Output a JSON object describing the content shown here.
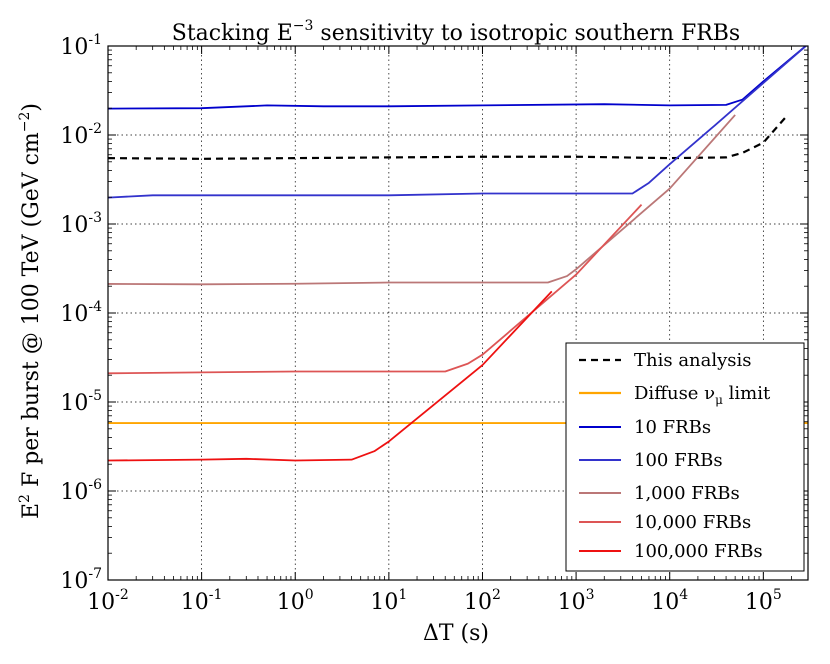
{
  "chart_data": {
    "type": "line",
    "title_main": "Stacking E",
    "title_exp": "−3",
    "title_rest": " sensitivity to isotropic southern FRBs",
    "xlabel": "ΔT (s)",
    "ylabel_prefix": "E",
    "ylabel_exp": "2",
    "ylabel_mid": " F per burst @ 100 TeV (GeV cm",
    "ylabel_exp2": "−2",
    "ylabel_suffix": ")",
    "x_scale": "log",
    "y_scale": "log",
    "xlim": [
      0.01,
      300000
    ],
    "ylim": [
      1e-07,
      0.1
    ],
    "grid": true,
    "legend_position": "lower-right",
    "x_ticks": [
      {
        "value": 0.01,
        "base": "10",
        "exp": "-2"
      },
      {
        "value": 0.1,
        "base": "10",
        "exp": "-1"
      },
      {
        "value": 1,
        "base": "10",
        "exp": "0"
      },
      {
        "value": 10,
        "base": "10",
        "exp": "1"
      },
      {
        "value": 100,
        "base": "10",
        "exp": "2"
      },
      {
        "value": 1000,
        "base": "10",
        "exp": "3"
      },
      {
        "value": 10000,
        "base": "10",
        "exp": "4"
      },
      {
        "value": 100000,
        "base": "10",
        "exp": "5"
      }
    ],
    "y_ticks": [
      {
        "value": 1e-07,
        "base": "10",
        "exp": "-7"
      },
      {
        "value": 1e-06,
        "base": "10",
        "exp": "-6"
      },
      {
        "value": 1e-05,
        "base": "10",
        "exp": "-5"
      },
      {
        "value": 0.0001,
        "base": "10",
        "exp": "-4"
      },
      {
        "value": 0.001,
        "base": "10",
        "exp": "-3"
      },
      {
        "value": 0.01,
        "base": "10",
        "exp": "-2"
      },
      {
        "value": 0.1,
        "base": "10",
        "exp": "-1"
      }
    ],
    "series": [
      {
        "name": "This analysis",
        "legend_label": "This analysis",
        "color": "#000000",
        "dashed": true,
        "points": [
          [
            0.01,
            0.0055
          ],
          [
            0.1,
            0.0054
          ],
          [
            1,
            0.0055
          ],
          [
            10,
            0.0056
          ],
          [
            100,
            0.0057
          ],
          [
            1000,
            0.0057
          ],
          [
            10000,
            0.0055
          ],
          [
            40000,
            0.0056
          ],
          [
            60000,
            0.0063
          ],
          [
            100000,
            0.0082
          ],
          [
            170000,
            0.0155
          ]
        ]
      },
      {
        "name": "Diffuse limit",
        "legend_label": "Diffuse ν",
        "legend_sub": "μ",
        "legend_suffix": " limit",
        "color": "#ffa500",
        "dashed": false,
        "points": [
          [
            0.01,
            5.8e-06
          ],
          [
            300000,
            5.8e-06
          ]
        ]
      },
      {
        "name": "10 FRBs",
        "legend_label": "10 FRBs",
        "color": "#0000cc",
        "dashed": false,
        "points": [
          [
            0.01,
            0.0198
          ],
          [
            0.1,
            0.02
          ],
          [
            0.5,
            0.0215
          ],
          [
            2,
            0.021
          ],
          [
            10,
            0.021
          ],
          [
            100,
            0.0215
          ],
          [
            2000,
            0.0222
          ],
          [
            10000,
            0.0215
          ],
          [
            40000,
            0.0218
          ],
          [
            60000,
            0.025
          ],
          [
            100000,
            0.04
          ],
          [
            300000,
            0.105
          ]
        ]
      },
      {
        "name": "100 FRBs",
        "legend_label": "100 FRBs",
        "color": "#3333cc",
        "dashed": false,
        "points": [
          [
            0.01,
            0.00198
          ],
          [
            0.03,
            0.0021
          ],
          [
            0.1,
            0.0021
          ],
          [
            1,
            0.0021
          ],
          [
            10,
            0.0021
          ],
          [
            100,
            0.0022
          ],
          [
            2000,
            0.0022
          ],
          [
            4000,
            0.0022
          ],
          [
            6000,
            0.0029
          ],
          [
            10000,
            0.0047
          ],
          [
            30000,
            0.0127
          ],
          [
            300000,
            0.105
          ]
        ]
      },
      {
        "name": "1,000 FRBs",
        "legend_label": "1,000 FRBs",
        "color": "#bb7777",
        "dashed": false,
        "points": [
          [
            0.01,
            0.000212
          ],
          [
            0.1,
            0.00021
          ],
          [
            1,
            0.000213
          ],
          [
            10,
            0.00022
          ],
          [
            100,
            0.00022
          ],
          [
            500,
            0.00022
          ],
          [
            800,
            0.00026
          ],
          [
            1000,
            0.00031
          ],
          [
            10000,
            0.0025
          ],
          [
            50000,
            0.0168
          ]
        ]
      },
      {
        "name": "10,000 FRBs",
        "legend_label": "10,000 FRBs",
        "color": "#dd5555",
        "dashed": false,
        "points": [
          [
            0.01,
            2.1e-05
          ],
          [
            0.1,
            2.15e-05
          ],
          [
            1,
            2.2e-05
          ],
          [
            10,
            2.2e-05
          ],
          [
            40,
            2.2e-05
          ],
          [
            70,
            2.7e-05
          ],
          [
            100,
            3.4e-05
          ],
          [
            1000,
            0.00027
          ],
          [
            5000,
            0.00165
          ]
        ]
      },
      {
        "name": "100,000 FRBs",
        "legend_label": "100,000 FRBs",
        "color": "#ee1111",
        "dashed": false,
        "points": [
          [
            0.01,
            2.2e-06
          ],
          [
            0.1,
            2.25e-06
          ],
          [
            0.3,
            2.3e-06
          ],
          [
            1,
            2.2e-06
          ],
          [
            4,
            2.25e-06
          ],
          [
            7,
            2.8e-06
          ],
          [
            10,
            3.6e-06
          ],
          [
            100,
            2.6e-05
          ],
          [
            550,
            0.000175
          ]
        ]
      }
    ]
  }
}
